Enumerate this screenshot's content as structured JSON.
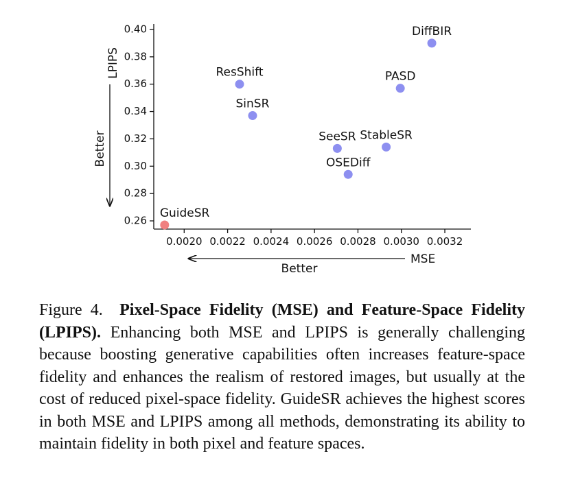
{
  "chart_data": {
    "type": "scatter",
    "xlabel": "MSE",
    "ylabel": "LPIPS",
    "x_direction_label": "Better",
    "y_direction_label": "Better",
    "xlim": [
      0.00186,
      0.00332
    ],
    "ylim": [
      0.254,
      0.404
    ],
    "xticks": [
      0.002,
      0.0022,
      0.0024,
      0.0026,
      0.0028,
      0.003,
      0.0032
    ],
    "xtick_labels": [
      "0.0020",
      "0.0022",
      "0.0024",
      "0.0026",
      "0.0028",
      "0.0030",
      "0.0032"
    ],
    "yticks": [
      0.26,
      0.28,
      0.3,
      0.32,
      0.34,
      0.36,
      0.38,
      0.4
    ],
    "ytick_labels": [
      "0.26",
      "0.28",
      "0.30",
      "0.32",
      "0.34",
      "0.36",
      "0.38",
      "0.40"
    ],
    "grid": false,
    "points": [
      {
        "name": "GuideSR",
        "x": 0.00191,
        "y": 0.257,
        "color": "#f08080",
        "label_pos": "above-right"
      },
      {
        "name": "ResShift",
        "x": 0.002255,
        "y": 0.36,
        "color": "#8d8ff0",
        "label_pos": "above"
      },
      {
        "name": "SinSR",
        "x": 0.002315,
        "y": 0.337,
        "color": "#8d8ff0",
        "label_pos": "above"
      },
      {
        "name": "SeeSR",
        "x": 0.002705,
        "y": 0.313,
        "color": "#8d8ff0",
        "label_pos": "above"
      },
      {
        "name": "StableSR",
        "x": 0.00293,
        "y": 0.314,
        "color": "#8d8ff0",
        "label_pos": "above"
      },
      {
        "name": "OSEDiff",
        "x": 0.002755,
        "y": 0.294,
        "color": "#8d8ff0",
        "label_pos": "above"
      },
      {
        "name": "PASD",
        "x": 0.002995,
        "y": 0.357,
        "color": "#8d8ff0",
        "label_pos": "above"
      },
      {
        "name": "DiffBIR",
        "x": 0.00314,
        "y": 0.39,
        "color": "#8d8ff0",
        "label_pos": "above"
      }
    ]
  },
  "caption": {
    "prefix": "Figure 4.",
    "bold": "Pixel-Space Fidelity (MSE) and Feature-Space Fidelity (LPIPS).",
    "body": "Enhancing both MSE and LPIPS is generally challenging because boosting generative capabilities often increases feature-space fidelity and enhances the realism of restored images, but usually at the cost of reduced pixel-space fidelity. GuideSR achieves the highest scores in both MSE and LPIPS among all methods, demonstrating its ability to maintain fidelity in both pixel and feature spaces."
  }
}
